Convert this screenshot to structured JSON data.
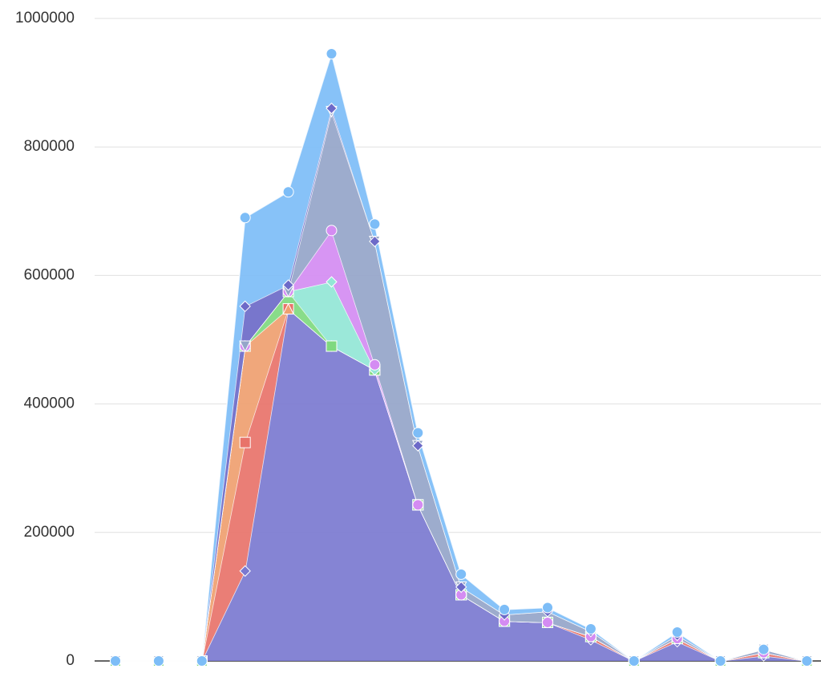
{
  "chart_data": {
    "type": "stacked-area",
    "categories": [
      null,
      null,
      null,
      null,
      null,
      null,
      null,
      null,
      null,
      null,
      null,
      null,
      null,
      null,
      null,
      null,
      null
    ],
    "series": [
      {
        "color": "#7b79d0",
        "symbol": "diamond",
        "values": [
          0,
          0,
          0,
          140000,
          548000,
          490000,
          453000,
          243000,
          103000,
          62000,
          60000,
          33000,
          0,
          30000,
          0,
          8000,
          0
        ]
      },
      {
        "color": "#e8736a",
        "symbol": "square",
        "values": [
          0,
          0,
          0,
          200000,
          0,
          0,
          0,
          0,
          0,
          0,
          0,
          5000,
          0,
          5000,
          0,
          5000,
          0
        ]
      },
      {
        "color": "#efa070",
        "symbol": "triangle",
        "values": [
          0,
          0,
          0,
          150000,
          0,
          0,
          0,
          0,
          0,
          0,
          0,
          0,
          0,
          0,
          0,
          0,
          0
        ]
      },
      {
        "color": "#7fd97f",
        "symbol": "square",
        "values": [
          0,
          0,
          0,
          0,
          27000,
          0,
          0,
          0,
          0,
          0,
          0,
          0,
          0,
          0,
          0,
          0,
          0
        ]
      },
      {
        "color": "#93e6d6",
        "symbol": "diamond",
        "values": [
          0,
          0,
          0,
          0,
          0,
          100000,
          0,
          0,
          0,
          0,
          0,
          0,
          0,
          0,
          0,
          0,
          0
        ]
      },
      {
        "color": "#d48cf2",
        "symbol": "circle",
        "values": [
          0,
          0,
          0,
          0,
          0,
          80000,
          8000,
          0,
          0,
          0,
          0,
          0,
          0,
          0,
          0,
          0,
          0
        ]
      },
      {
        "color": "#95a5c9",
        "symbol": "triangle-down",
        "values": [
          0,
          0,
          0,
          0,
          0,
          185000,
          192000,
          92000,
          12000,
          10000,
          17000,
          8000,
          0,
          5000,
          0,
          5000,
          0
        ]
      },
      {
        "color": "#6d6ac8",
        "symbol": "diamond",
        "values": [
          0,
          0,
          0,
          62000,
          10000,
          5000,
          0,
          0,
          0,
          0,
          0,
          0,
          0,
          0,
          0,
          0,
          0
        ]
      },
      {
        "color": "#7dbdf7",
        "symbol": "circle",
        "values": [
          0,
          0,
          0,
          138000,
          145000,
          85000,
          27000,
          20000,
          20000,
          8000,
          6000,
          4000,
          0,
          5000,
          0,
          0,
          0
        ]
      }
    ],
    "ylim": [
      0,
      1000000
    ],
    "yticks": [
      0,
      200000,
      400000,
      600000,
      800000,
      1000000
    ],
    "grid": true
  }
}
